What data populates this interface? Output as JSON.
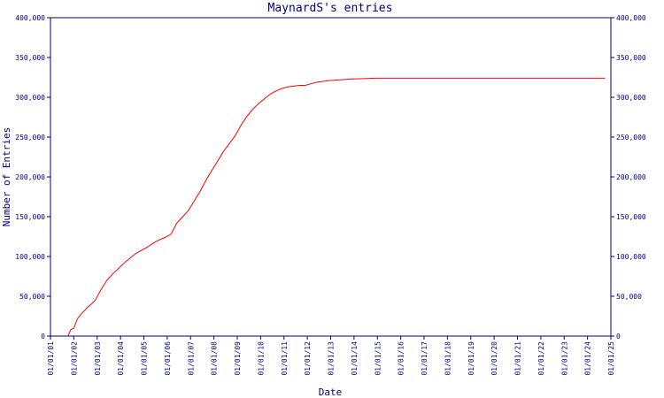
{
  "chart_data": {
    "type": "line",
    "title": "MaynardS's entries",
    "xlabel": "Date",
    "ylabel": "Number of Entries",
    "grid": false,
    "legend": "none",
    "colors": {
      "axis": "#000080",
      "line": "#ff0000",
      "background": "#ffffff"
    },
    "x_ticks": [
      "01/01/01",
      "01/01/02",
      "01/01/03",
      "01/01/04",
      "01/01/05",
      "01/01/06",
      "01/01/07",
      "01/01/08",
      "01/01/09",
      "01/01/10",
      "01/01/11",
      "01/01/12",
      "01/01/13",
      "01/01/14",
      "01/01/15",
      "01/01/16",
      "01/01/17",
      "01/01/18",
      "01/01/19",
      "01/01/20",
      "01/01/21",
      "01/01/22",
      "01/01/23",
      "01/01/24",
      "01/01/25"
    ],
    "y_ticks": [
      "0",
      "50,000",
      "100,000",
      "150,000",
      "200,000",
      "250,000",
      "300,000",
      "350,000",
      "400,000"
    ],
    "ylim": [
      0,
      400000
    ],
    "xlim": [
      "2001-01-01",
      "2025-01-01"
    ],
    "series": [
      {
        "x": [
          "2001-10-01",
          "2001-11-15",
          "2002-01-01",
          "2002-03-01",
          "2002-05-01",
          "2002-08-01",
          "2002-10-01",
          "2002-12-01",
          "2003-03-01",
          "2003-06-01",
          "2003-09-01",
          "2003-12-01",
          "2004-03-01",
          "2004-06-01",
          "2004-09-01",
          "2004-12-01",
          "2005-03-01",
          "2005-06-01",
          "2005-09-01",
          "2005-12-01",
          "2006-03-01",
          "2006-06-01",
          "2006-09-01",
          "2006-12-01",
          "2007-03-01",
          "2007-06-01",
          "2007-09-01",
          "2007-12-01",
          "2008-03-01",
          "2008-06-01",
          "2008-09-01",
          "2008-12-01",
          "2009-03-01",
          "2009-06-01",
          "2009-09-01",
          "2009-12-01",
          "2010-03-01",
          "2010-06-01",
          "2010-09-01",
          "2010-12-01",
          "2011-03-01",
          "2011-06-01",
          "2011-09-01",
          "2011-12-01",
          "2012-03-01",
          "2012-06-01",
          "2012-09-01",
          "2012-12-01",
          "2013-06-01",
          "2013-12-01",
          "2014-06-01",
          "2014-12-01",
          "2015-06-01",
          "2016-01-01",
          "2017-01-01",
          "2018-01-01",
          "2019-01-01",
          "2020-01-01",
          "2021-01-01",
          "2022-01-01",
          "2023-01-01",
          "2024-01-01",
          "2024-10-01"
        ],
        "y": [
          0,
          8000,
          10000,
          22000,
          28000,
          36000,
          40000,
          45000,
          58000,
          70000,
          78000,
          85000,
          92000,
          98000,
          104000,
          108000,
          112000,
          117000,
          121000,
          124000,
          128000,
          142000,
          150000,
          158000,
          170000,
          182000,
          196000,
          208000,
          220000,
          232000,
          242000,
          252000,
          265000,
          276000,
          285000,
          292000,
          298000,
          304000,
          308000,
          311000,
          313000,
          314000,
          315000,
          315000,
          317000,
          319000,
          320000,
          321000,
          322000,
          323000,
          323500,
          324000,
          324000,
          324000,
          324000,
          324000,
          324000,
          324000,
          324000,
          324000,
          324000,
          324000,
          324000
        ]
      }
    ]
  }
}
